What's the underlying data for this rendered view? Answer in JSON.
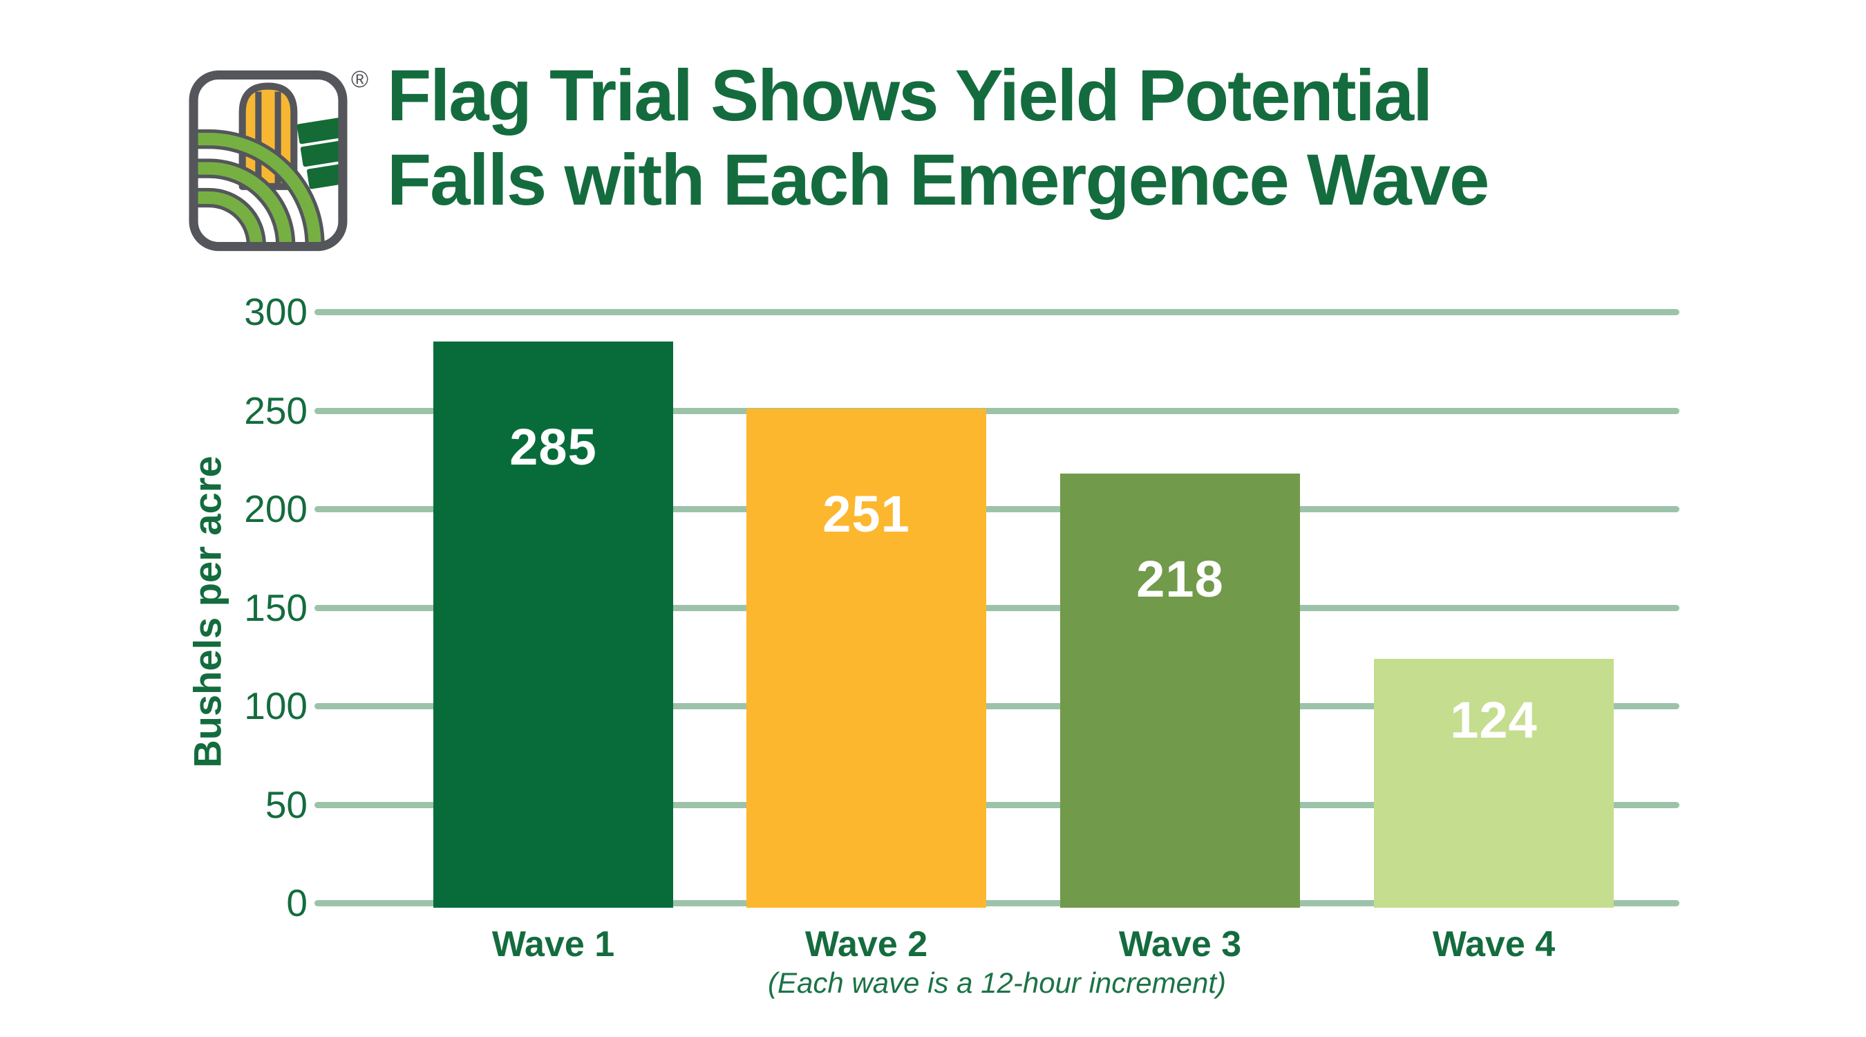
{
  "page": {
    "background_color": "#FFFFFF",
    "accent_green": "#146C3E",
    "gridline_color": "#9CC3A9"
  },
  "logo": {
    "name": "field-and-corn-brand-mark",
    "registered_mark": "®",
    "colors": {
      "outline_gray": "#54565B",
      "corn_yellow": "#F7B733",
      "field_light_green": "#76B043",
      "field_dark_green": "#156B35"
    }
  },
  "title": {
    "lines": [
      "Flag Trial Shows Yield Potential",
      "Falls with Each Emergence Wave"
    ],
    "color": "#146C3E"
  },
  "chart_data": {
    "type": "bar",
    "title": "Flag Trial Shows Yield Potential Falls with Each Emergence Wave",
    "categories": [
      "Wave 1",
      "Wave 2",
      "Wave 3",
      "Wave 4"
    ],
    "values": [
      285,
      251,
      218,
      124
    ],
    "bar_colors": [
      "#076C3A",
      "#FCB72E",
      "#719A4A",
      "#C5DD8E"
    ],
    "value_label_color": "#FFFFFF",
    "xlabel": "",
    "ylabel": "Bushels per acre",
    "ylim": [
      0,
      300
    ],
    "yticks": [
      300,
      250,
      200,
      150,
      100,
      50,
      0
    ],
    "grid": true,
    "gridline_color": "#9CC3A9",
    "legend_position": "none",
    "caption": "(Each wave is a 12-hour increment)"
  }
}
